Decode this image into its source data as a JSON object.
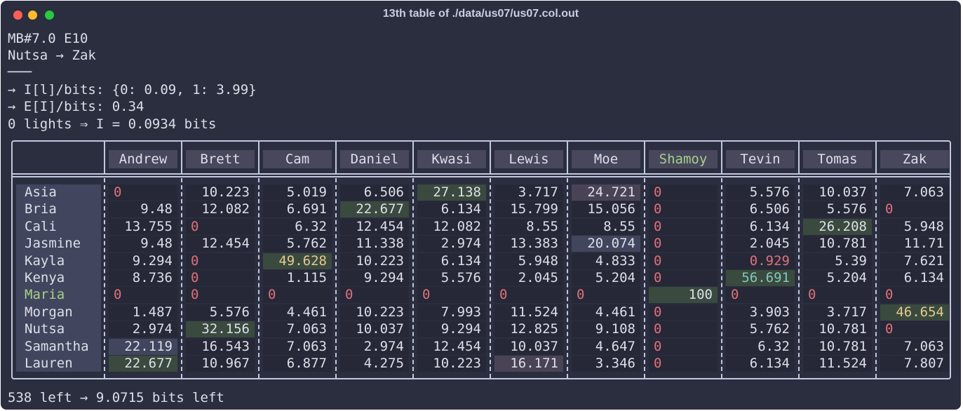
{
  "window": {
    "title": "13th table of ./data/us07/us07.col.out"
  },
  "info": {
    "lines": [
      "MB#7.0 E10",
      "Nutsa → Zak",
      "───",
      "→ I[l]/bits: {0: 0.09, 1: 3.99}",
      "→ E[I]/bits: 0.34",
      "0 lights ⇒ I = 0.0934 bits"
    ],
    "footer": "538 left → 9.0715 bits left"
  },
  "colors": {
    "background": "#2b2e3f",
    "header_bg": "#48475c",
    "row_label_bg": "#41465e",
    "cell_bg": "#262837",
    "highlight_green": "#3a4a3e",
    "highlight_blue": "#41465e",
    "highlight_mauve": "#4a4356",
    "zero_red": "#e0707a",
    "gold": "#e5c890",
    "green_text": "#a6d189",
    "teal": "#81c8be"
  },
  "table": {
    "columns": [
      "Andrew",
      "Brett",
      "Cam",
      "Daniel",
      "Kwasi",
      "Lewis",
      "Moe",
      "Shamoy",
      "Tevin",
      "Tomas",
      "Zak"
    ],
    "rows": [
      {
        "name": "Asia",
        "cells": [
          "0",
          "10.223",
          "5.019",
          "6.506",
          "27.138",
          "3.717",
          "24.721",
          "0",
          "5.576",
          "10.037",
          "7.063"
        ]
      },
      {
        "name": "Bria",
        "cells": [
          "9.48",
          "12.082",
          "6.691",
          "22.677",
          "6.134",
          "15.799",
          "15.056",
          "0",
          "6.506",
          "5.576",
          "0"
        ]
      },
      {
        "name": "Cali",
        "cells": [
          "13.755",
          "0",
          "6.32",
          "12.454",
          "12.082",
          "8.55",
          "8.55",
          "0",
          "6.134",
          "26.208",
          "5.948"
        ]
      },
      {
        "name": "Jasmine",
        "cells": [
          "9.48",
          "12.454",
          "5.762",
          "11.338",
          "2.974",
          "13.383",
          "20.074",
          "0",
          "2.045",
          "10.781",
          "11.71"
        ]
      },
      {
        "name": "Kayla",
        "cells": [
          "9.294",
          "0",
          "49.628",
          "10.223",
          "6.134",
          "5.948",
          "4.833",
          "0",
          "0.929",
          "5.39",
          "7.621"
        ]
      },
      {
        "name": "Kenya",
        "cells": [
          "8.736",
          "0",
          "1.115",
          "9.294",
          "5.576",
          "2.045",
          "5.204",
          "0",
          "56.691",
          "5.204",
          "6.134"
        ]
      },
      {
        "name": "Maria",
        "cells": [
          "0",
          "0",
          "0",
          "0",
          "0",
          "0",
          "0",
          "100",
          "0",
          "0",
          "0"
        ]
      },
      {
        "name": "Morgan",
        "cells": [
          "1.487",
          "5.576",
          "4.461",
          "10.223",
          "7.993",
          "11.524",
          "4.461",
          "0",
          "3.903",
          "3.717",
          "46.654"
        ]
      },
      {
        "name": "Nutsa",
        "cells": [
          "2.974",
          "32.156",
          "7.063",
          "10.037",
          "9.294",
          "12.825",
          "9.108",
          "0",
          "5.762",
          "10.781",
          "0"
        ]
      },
      {
        "name": "Samantha",
        "cells": [
          "22.119",
          "16.543",
          "7.063",
          "2.974",
          "12.454",
          "10.037",
          "4.647",
          "0",
          "6.32",
          "10.781",
          "7.063"
        ]
      },
      {
        "name": "Lauren",
        "cells": [
          "22.677",
          "10.967",
          "6.877",
          "4.275",
          "10.223",
          "16.171",
          "3.346",
          "0",
          "6.134",
          "11.524",
          "7.807"
        ]
      }
    ]
  }
}
